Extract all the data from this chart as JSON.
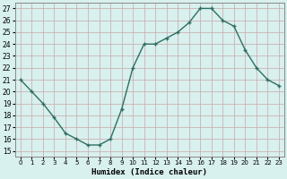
{
  "x": [
    0,
    1,
    2,
    3,
    4,
    5,
    6,
    7,
    8,
    9,
    10,
    11,
    12,
    13,
    14,
    15,
    16,
    17,
    18,
    19,
    20,
    21,
    22,
    23
  ],
  "y": [
    21.0,
    20.0,
    19.0,
    17.8,
    16.5,
    16.0,
    15.5,
    15.5,
    16.0,
    18.5,
    22.0,
    24.0,
    24.0,
    24.5,
    25.0,
    25.8,
    27.0,
    27.0,
    26.0,
    25.5,
    23.5,
    22.0,
    21.0,
    20.5
  ],
  "line_color": "#2d6e63",
  "marker_color": "#2d6e63",
  "bg_color": "#d8f0ee",
  "plot_bg_color": "#d8f0ee",
  "grid_color": "#c8a8a8",
  "xlabel": "Humidex (Indice chaleur)",
  "xlim": [
    -0.5,
    23.5
  ],
  "ylim": [
    14.5,
    27.5
  ],
  "yticks": [
    15,
    16,
    17,
    18,
    19,
    20,
    21,
    22,
    23,
    24,
    25,
    26,
    27
  ],
  "xtick_labels": [
    "0",
    "1",
    "2",
    "3",
    "4",
    "5",
    "6",
    "7",
    "8",
    "9",
    "10",
    "11",
    "12",
    "13",
    "14",
    "15",
    "16",
    "17",
    "18",
    "19",
    "20",
    "21",
    "22",
    "23"
  ]
}
